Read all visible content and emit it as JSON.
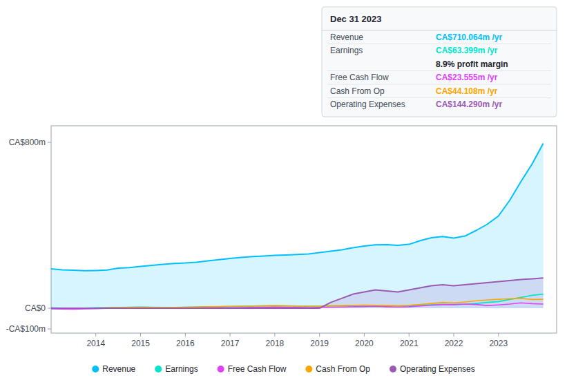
{
  "chart_data": {
    "type": "line",
    "x": [
      2013.0,
      2013.25,
      2013.5,
      2013.75,
      2014.0,
      2014.25,
      2014.5,
      2014.75,
      2015.0,
      2015.25,
      2015.5,
      2015.75,
      2016.0,
      2016.25,
      2016.5,
      2016.75,
      2017.0,
      2017.25,
      2017.5,
      2017.75,
      2018.0,
      2018.25,
      2018.5,
      2018.75,
      2019.0,
      2019.25,
      2019.5,
      2019.75,
      2020.0,
      2020.25,
      2020.5,
      2020.75,
      2021.0,
      2021.25,
      2021.5,
      2021.75,
      2022.0,
      2022.25,
      2022.5,
      2022.75,
      2023.0,
      2023.25,
      2023.5,
      2023.75,
      2024.0
    ],
    "series": [
      {
        "name": "Revenue",
        "color": "#00bfff",
        "type": "area",
        "values": [
          190,
          185,
          183,
          181,
          182,
          184,
          193,
          196,
          202,
          207,
          212,
          216,
          218,
          222,
          228,
          234,
          240,
          245,
          249,
          252,
          255,
          257,
          259,
          262,
          268,
          275,
          282,
          292,
          300,
          306,
          307,
          303,
          308,
          326,
          340,
          346,
          338,
          348,
          375,
          405,
          445,
          520,
          610,
          695,
          795
        ]
      },
      {
        "name": "Earnings",
        "color": "#00e5cc",
        "type": "line",
        "values": [
          2,
          1,
          0,
          1,
          2,
          3,
          4,
          5,
          6,
          5,
          4,
          4,
          5,
          6,
          7,
          7,
          8,
          9,
          10,
          11,
          12,
          11,
          10,
          9,
          10,
          11,
          12,
          13,
          14,
          13,
          12,
          11,
          12,
          14,
          17,
          19,
          17,
          19,
          23,
          28,
          32,
          42,
          52,
          62,
          68
        ]
      },
      {
        "name": "Free Cash Flow",
        "color": "#e040fb",
        "type": "line",
        "values": [
          -3,
          -4,
          -5,
          -3,
          -2,
          -1,
          0,
          1,
          2,
          1,
          0,
          1,
          2,
          3,
          4,
          3,
          2,
          3,
          4,
          5,
          6,
          5,
          4,
          3,
          4,
          5,
          6,
          7,
          8,
          9,
          7,
          6,
          7,
          11,
          14,
          17,
          18,
          20,
          18,
          13,
          16,
          20,
          26,
          22,
          20
        ]
      },
      {
        "name": "Cash From Op",
        "color": "#ffa500",
        "type": "line",
        "values": [
          1,
          0,
          -1,
          0,
          1,
          2,
          3,
          4,
          5,
          4,
          3,
          4,
          5,
          6,
          7,
          8,
          9,
          10,
          11,
          12,
          13,
          12,
          11,
          10,
          11,
          12,
          13,
          14,
          15,
          14,
          13,
          12,
          14,
          18,
          23,
          28,
          26,
          30,
          36,
          40,
          43,
          46,
          48,
          42,
          43
        ]
      },
      {
        "name": "Operating Expenses",
        "color": "#9b59b6",
        "type": "area",
        "values": [
          0,
          0,
          0,
          0,
          0,
          0,
          0,
          0,
          0,
          0,
          0,
          0,
          0,
          0,
          0,
          0,
          0,
          0,
          0,
          0,
          0,
          0,
          0,
          0,
          0,
          28,
          48,
          68,
          78,
          88,
          83,
          78,
          88,
          98,
          108,
          113,
          108,
          113,
          118,
          123,
          128,
          133,
          138,
          142,
          146
        ]
      }
    ],
    "xlim": [
      2013.0,
      2024.3
    ],
    "xticks": [
      2014,
      2015,
      2016,
      2017,
      2018,
      2019,
      2020,
      2021,
      2022,
      2023
    ],
    "ylim": [
      -120,
      880
    ],
    "yticks": [
      {
        "value": 800,
        "label": "CA$800m"
      },
      {
        "value": 0,
        "label": "CA$0"
      },
      {
        "value": -100,
        "label": "-CA$100m"
      }
    ],
    "grid": false,
    "legend": "bottom",
    "annotations": [
      [
        "Dec 31 2023"
      ],
      [
        "Revenue",
        "CA$710.064m /yr"
      ],
      [
        "Earnings",
        "CA$63.399m /yr",
        "8.9% profit margin"
      ],
      [
        "Free Cash Flow",
        "CA$23.555m /yr"
      ],
      [
        "Cash From Op",
        "CA$44.108m /yr"
      ],
      [
        "Operating Expenses",
        "CA$144.290m /yr"
      ]
    ]
  }
}
